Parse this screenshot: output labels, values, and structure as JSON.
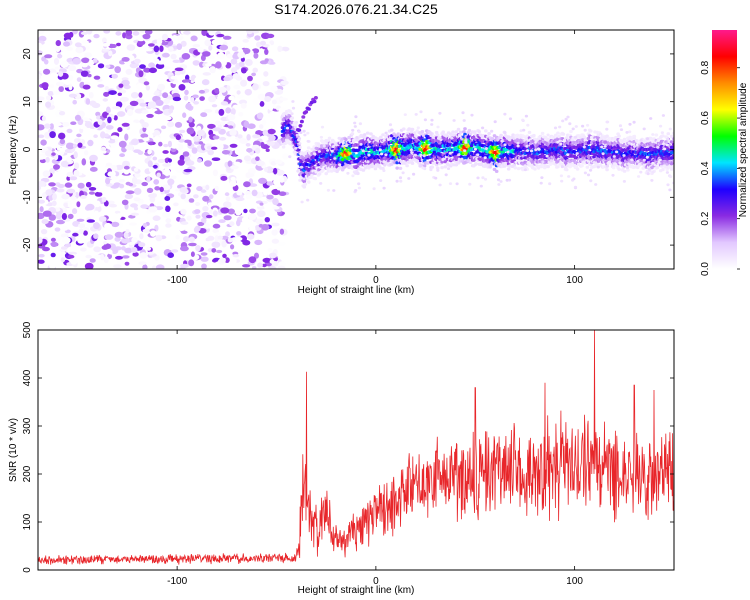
{
  "title": "S174.2026.076.21.34.C25",
  "chart_data": [
    {
      "type": "heatmap",
      "name": "spectrogram",
      "xlabel": "Height of straight line (km)",
      "ylabel": "Frequency (Hz)",
      "xlim": [
        -170,
        150
      ],
      "ylim": [
        -25,
        25
      ],
      "xticks": [
        -100,
        0,
        100
      ],
      "yticks": [
        -20,
        -10,
        0,
        10,
        20
      ],
      "colorbar": {
        "label": "Normalized spectral amplitude",
        "range": [
          0,
          0.95
        ],
        "ticks": [
          "0.0",
          "0.2",
          "0.4",
          "0.6",
          "0.8"
        ],
        "tick_values": [
          0.0,
          0.2,
          0.4,
          0.6,
          0.8
        ],
        "colors": [
          "#ffffff",
          "#e2c8ff",
          "#8a2be2",
          "#1e00ff",
          "#00e5ff",
          "#00ff00",
          "#ffff00",
          "#ff8c00",
          "#ff0000",
          "#ff1a8c"
        ]
      },
      "noise_region_x": [
        -170,
        -47
      ],
      "trace": {
        "x": [
          -47,
          -44,
          -40,
          -38,
          -36,
          -33,
          -30,
          -25,
          -20,
          -15,
          -10,
          -5,
          0,
          10,
          20,
          30,
          40,
          50,
          60,
          70,
          80,
          90,
          100,
          110,
          120,
          130,
          140,
          150
        ],
        "y": [
          4,
          5,
          2,
          -3,
          -4,
          -3,
          -2,
          -1,
          -1.5,
          -0.5,
          -1,
          -0.5,
          -0.5,
          0,
          0.5,
          0,
          0.5,
          0.5,
          -0.5,
          0,
          -0.5,
          0,
          -0.5,
          0,
          -0.5,
          -1,
          -1,
          -0.5
        ],
        "peak_amplitude_x": [
          -15,
          10,
          25,
          45,
          60
        ]
      },
      "branch": {
        "x": [
          -40,
          -35,
          -30
        ],
        "y": [
          3,
          8,
          11
        ]
      }
    },
    {
      "type": "line",
      "name": "snr",
      "xlabel": "Height of straight line (km)",
      "ylabel": "SNR (10 * v/v)",
      "xlim": [
        -170,
        150
      ],
      "ylim": [
        0,
        500
      ],
      "xticks": [
        -100,
        0,
        100
      ],
      "yticks": [
        0,
        100,
        200,
        300,
        400,
        500
      ],
      "color": "#e8262a",
      "envelope": {
        "x": [
          -170,
          -40,
          -37,
          -36,
          -34,
          -30,
          -25,
          -20,
          -15,
          -10,
          -5,
          0,
          10,
          20,
          30,
          40,
          50,
          60,
          70,
          80,
          90,
          100,
          110,
          120,
          130,
          140,
          150
        ],
        "base": [
          20,
          25,
          150,
          200,
          120,
          80,
          100,
          60,
          60,
          80,
          100,
          120,
          150,
          180,
          200,
          200,
          200,
          210,
          210,
          210,
          215,
          215,
          215,
          210,
          205,
          200,
          200
        ],
        "spread": [
          12,
          12,
          120,
          140,
          80,
          70,
          80,
          40,
          40,
          50,
          60,
          70,
          80,
          90,
          100,
          110,
          110,
          110,
          110,
          120,
          120,
          120,
          120,
          120,
          120,
          110,
          110
        ]
      },
      "spikes": [
        {
          "x": -35,
          "y": 413
        },
        {
          "x": 110,
          "y": 500
        },
        {
          "x": 50,
          "y": 380
        },
        {
          "x": 85,
          "y": 390
        },
        {
          "x": 130,
          "y": 385
        },
        {
          "x": 140,
          "y": 375
        }
      ]
    }
  ]
}
